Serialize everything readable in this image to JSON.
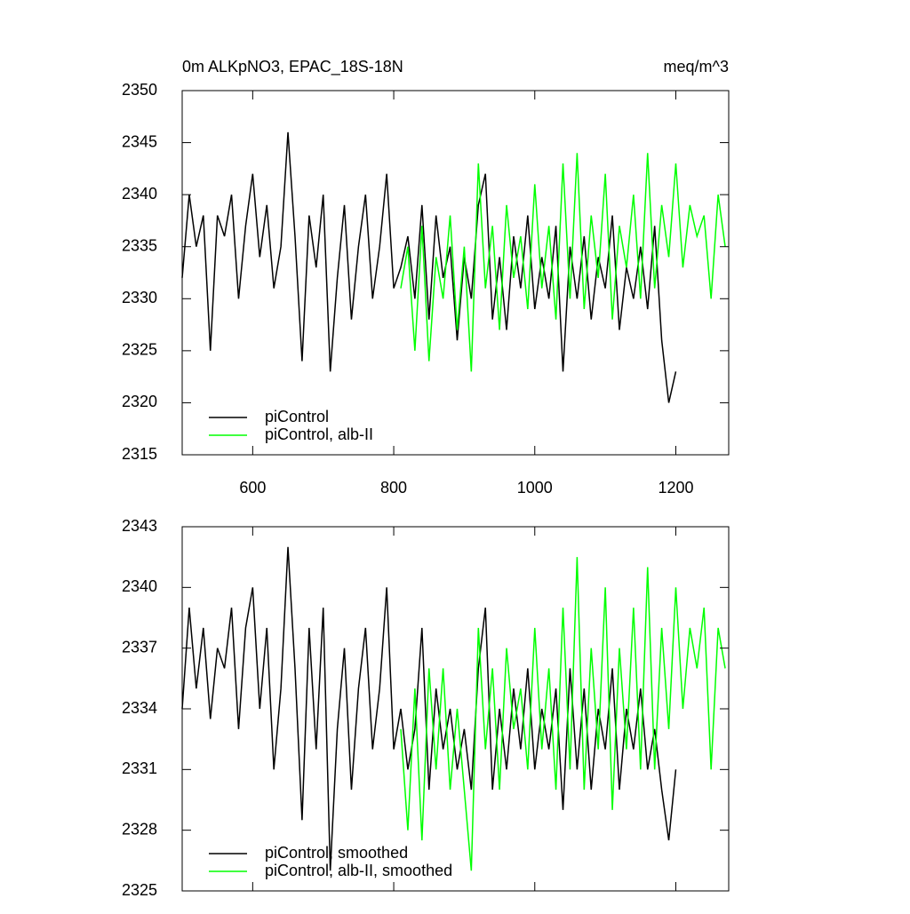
{
  "chart_data": [
    {
      "type": "line",
      "title": "0m ALKpNO3, EPAC_18S-18N",
      "units": "meq/m^3",
      "xlim": [
        500,
        1275
      ],
      "xticks": [
        600,
        800,
        1000,
        1200
      ],
      "show_xtick_labels": true,
      "ylim": [
        2315,
        2350
      ],
      "yticks": [
        2315,
        2320,
        2325,
        2330,
        2335,
        2340,
        2345,
        2350
      ],
      "legend": "lower left",
      "series": [
        {
          "name": "piControl",
          "color": "#000000",
          "x": [
            500,
            510,
            520,
            530,
            540,
            550,
            560,
            570,
            580,
            590,
            600,
            610,
            620,
            630,
            640,
            650,
            660,
            670,
            680,
            690,
            700,
            710,
            720,
            730,
            740,
            750,
            760,
            770,
            780,
            790,
            800,
            810,
            820,
            830,
            840,
            850,
            860,
            870,
            880,
            890,
            900,
            910,
            920,
            930,
            940,
            950,
            960,
            970,
            980,
            990,
            1000,
            1010,
            1020,
            1030,
            1040,
            1050,
            1060,
            1070,
            1080,
            1090,
            1100,
            1110,
            1120,
            1130,
            1140,
            1150,
            1160,
            1170,
            1180,
            1190,
            1200
          ],
          "values": [
            2332,
            2340,
            2335,
            2338,
            2325,
            2338,
            2336,
            2340,
            2330,
            2337,
            2342,
            2334,
            2339,
            2331,
            2335,
            2346,
            2336,
            2324,
            2338,
            2333,
            2340,
            2323,
            2332,
            2339,
            2328,
            2335,
            2340,
            2330,
            2335,
            2342,
            2331,
            2333,
            2336,
            2330,
            2339,
            2328,
            2338,
            2332,
            2335,
            2326,
            2334,
            2330,
            2339,
            2342,
            2328,
            2334,
            2327,
            2336,
            2331,
            2338,
            2329,
            2334,
            2330,
            2337,
            2323,
            2335,
            2330,
            2336,
            2328,
            2334,
            2331,
            2338,
            2327,
            2333,
            2330,
            2335,
            2329,
            2337,
            2326,
            2320,
            2323
          ]
        },
        {
          "name": "piControl, alb-II",
          "color": "#00ff00",
          "x": [
            810,
            820,
            830,
            840,
            850,
            860,
            870,
            880,
            890,
            900,
            910,
            920,
            930,
            940,
            950,
            960,
            970,
            980,
            990,
            1000,
            1010,
            1020,
            1030,
            1040,
            1050,
            1060,
            1070,
            1080,
            1090,
            1100,
            1110,
            1120,
            1130,
            1140,
            1150,
            1160,
            1170,
            1180,
            1190,
            1200,
            1210,
            1220,
            1230,
            1240,
            1250,
            1260,
            1270
          ],
          "values": [
            2331,
            2335,
            2325,
            2337,
            2324,
            2334,
            2330,
            2338,
            2327,
            2335,
            2323,
            2343,
            2331,
            2337,
            2327,
            2339,
            2332,
            2336,
            2329,
            2341,
            2331,
            2337,
            2328,
            2343,
            2330,
            2344,
            2329,
            2338,
            2332,
            2342,
            2328,
            2337,
            2333,
            2340,
            2330,
            2344,
            2331,
            2339,
            2334,
            2343,
            2333,
            2339,
            2336,
            2338,
            2330,
            2340,
            2335
          ]
        }
      ]
    },
    {
      "type": "line",
      "xlim": [
        500,
        1275
      ],
      "xticks": [
        600,
        800,
        1000,
        1200
      ],
      "show_xtick_labels": false,
      "ylim": [
        2325,
        2343
      ],
      "yticks": [
        2325,
        2328,
        2331,
        2334,
        2337,
        2340,
        2343
      ],
      "legend": "lower left",
      "series": [
        {
          "name": "piControl, smoothed",
          "color": "#000000",
          "x": [
            500,
            510,
            520,
            530,
            540,
            550,
            560,
            570,
            580,
            590,
            600,
            610,
            620,
            630,
            640,
            650,
            660,
            670,
            680,
            690,
            700,
            710,
            720,
            730,
            740,
            750,
            760,
            770,
            780,
            790,
            800,
            810,
            820,
            830,
            840,
            850,
            860,
            870,
            880,
            890,
            900,
            910,
            920,
            930,
            940,
            950,
            960,
            970,
            980,
            990,
            1000,
            1010,
            1020,
            1030,
            1040,
            1050,
            1060,
            1070,
            1080,
            1090,
            1100,
            1110,
            1120,
            1130,
            1140,
            1150,
            1160,
            1170,
            1180,
            1190,
            1200
          ],
          "values": [
            2334,
            2339,
            2335,
            2338,
            2333.5,
            2337,
            2336,
            2339,
            2333,
            2338,
            2340,
            2334,
            2338,
            2331,
            2335,
            2342,
            2336,
            2328.5,
            2338,
            2332,
            2339,
            2326,
            2333,
            2337,
            2330,
            2335,
            2338,
            2332,
            2335,
            2340,
            2332,
            2334,
            2331,
            2333,
            2338,
            2330,
            2335,
            2332,
            2334,
            2331,
            2333,
            2330,
            2336,
            2339,
            2330,
            2334,
            2331,
            2335,
            2332,
            2336,
            2331,
            2334,
            2332,
            2335,
            2329,
            2336,
            2331,
            2335,
            2330,
            2334,
            2332,
            2336,
            2330,
            2334,
            2332,
            2335,
            2331,
            2333,
            2330,
            2327.5,
            2331
          ]
        },
        {
          "name": "piControl, alb-II, smoothed",
          "color": "#00ff00",
          "x": [
            810,
            820,
            830,
            840,
            850,
            860,
            870,
            880,
            890,
            900,
            910,
            920,
            930,
            940,
            950,
            960,
            970,
            980,
            990,
            1000,
            1010,
            1020,
            1030,
            1040,
            1050,
            1060,
            1070,
            1080,
            1090,
            1100,
            1110,
            1120,
            1130,
            1140,
            1150,
            1160,
            1170,
            1180,
            1190,
            1200,
            1210,
            1220,
            1230,
            1240,
            1250,
            1260,
            1270
          ],
          "values": [
            2333,
            2328,
            2335,
            2327.5,
            2336,
            2331,
            2336,
            2330,
            2334,
            2330,
            2326,
            2338,
            2332,
            2336,
            2330,
            2337,
            2333,
            2335,
            2331,
            2338,
            2332,
            2336,
            2330,
            2339,
            2331,
            2341.5,
            2330,
            2337,
            2332,
            2340,
            2329,
            2337,
            2332,
            2339,
            2331,
            2341,
            2331,
            2338,
            2333,
            2340,
            2334,
            2338,
            2336,
            2339,
            2331,
            2338,
            2336
          ]
        }
      ]
    }
  ]
}
